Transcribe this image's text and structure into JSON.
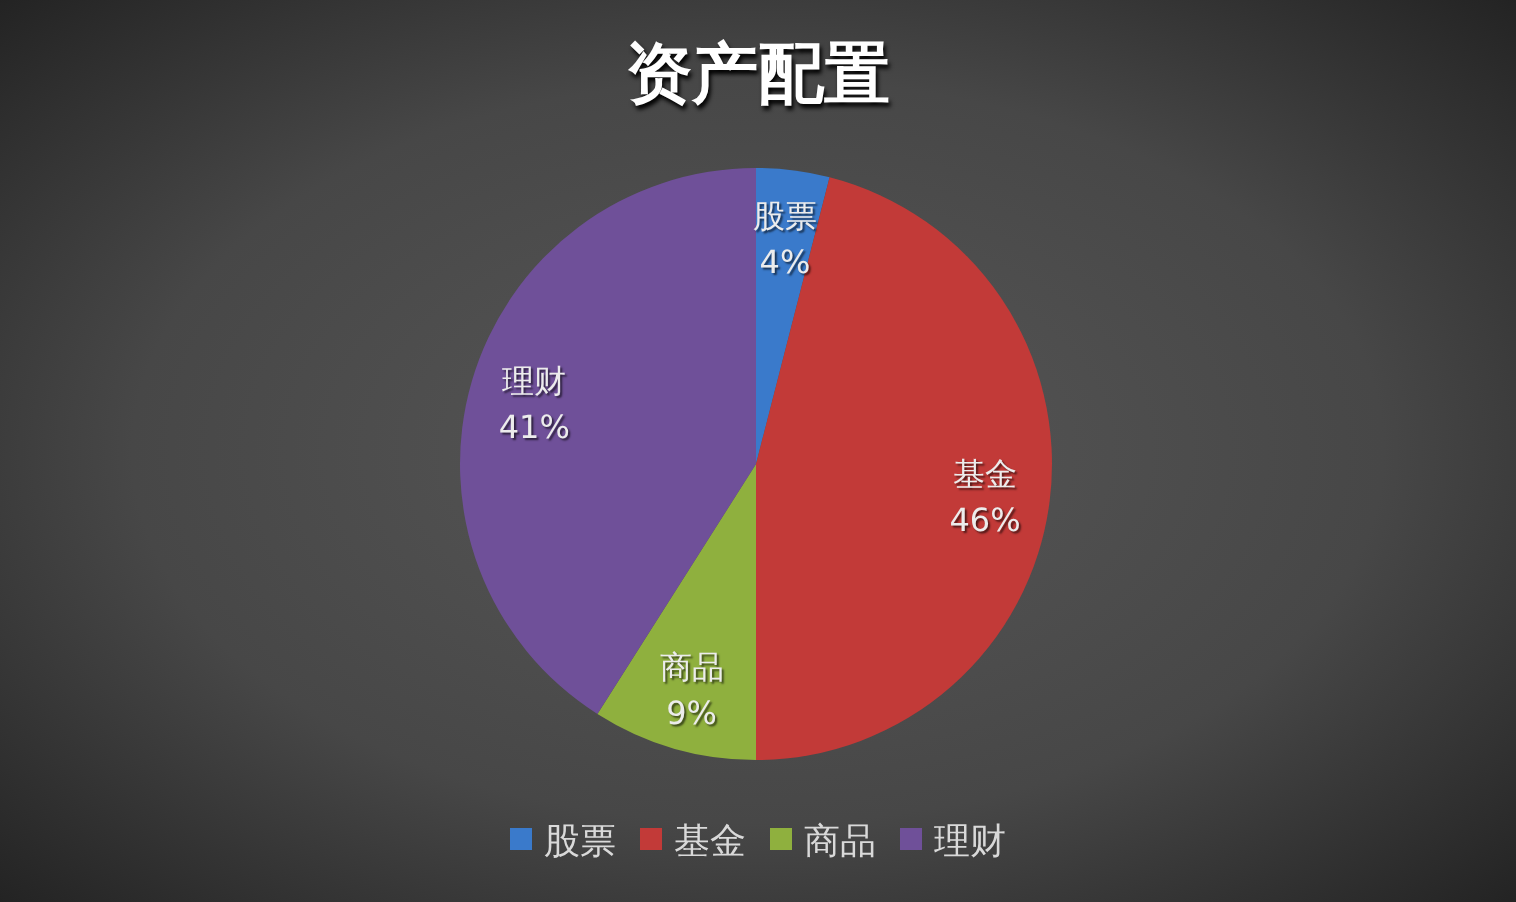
{
  "chart_data": {
    "type": "pie",
    "title": "资产配置",
    "categories": [
      "股票",
      "基金",
      "商品",
      "理财"
    ],
    "values": [
      4,
      46,
      9,
      41
    ],
    "colors": [
      "#3a7acb",
      "#c23a38",
      "#8fb03e",
      "#6f5099"
    ],
    "value_labels": [
      "4%",
      "46%",
      "9%",
      "41%"
    ],
    "legend": "bottom"
  }
}
